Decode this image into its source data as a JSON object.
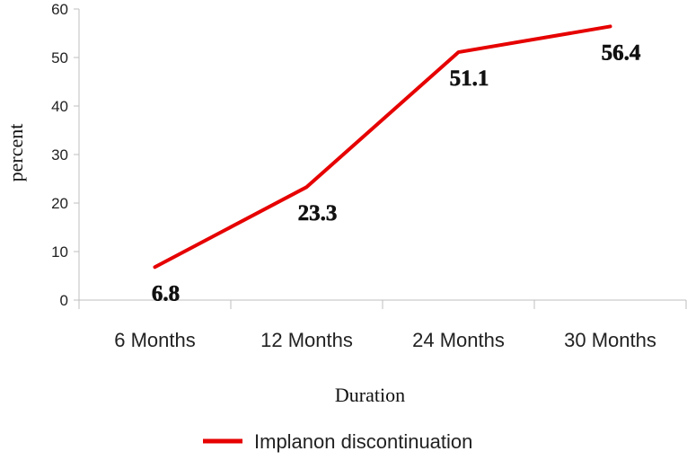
{
  "chart_data": {
    "type": "line",
    "categories": [
      "6 Months",
      "12 Months",
      "24 Months",
      "30 Months"
    ],
    "series": [
      {
        "name": "Implanon discontinuation",
        "values": [
          6.8,
          23.3,
          51.1,
          56.4
        ],
        "color": "#e60000"
      }
    ],
    "data_labels": [
      "6.8",
      "23.3",
      "51.1",
      "56.4"
    ],
    "xlabel": "Duration",
    "ylabel": "percent",
    "ylim": [
      0,
      60
    ],
    "yticks": [
      0,
      10,
      20,
      30,
      40,
      50,
      60
    ],
    "grid": false,
    "legend_position": "bottom"
  }
}
